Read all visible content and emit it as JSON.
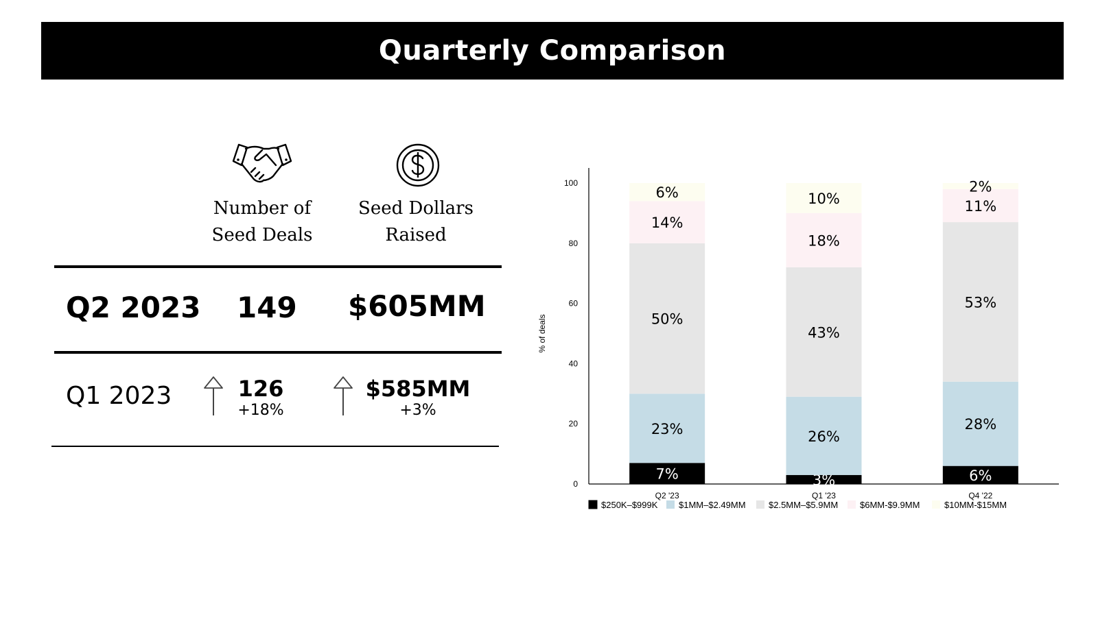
{
  "banner": {
    "title": "Quarterly Comparison"
  },
  "table": {
    "col_deals": {
      "line1": "Number of",
      "line2": "Seed Deals",
      "icon": "handshake-icon"
    },
    "col_dollars": {
      "line1": "Seed Dollars",
      "line2": "Raised",
      "icon": "dollar-coin-icon"
    },
    "current": {
      "label": "Q2 2023",
      "deals": "149",
      "dollars": "$605MM"
    },
    "previous": {
      "label": "Q1 2023",
      "deals": "126",
      "deals_change": "+18%",
      "dollars": "$585MM",
      "dollars_change": "+3%",
      "arrow_icon": "up-arrow-icon"
    }
  },
  "chart_data": {
    "type": "bar",
    "stacked": true,
    "categories": [
      "Q2 '23",
      "Q1 '23",
      "Q4 '22"
    ],
    "ylabel": "% of deals",
    "ylim": [
      0,
      100
    ],
    "yticks": [
      0,
      20,
      40,
      60,
      80,
      100
    ],
    "legend_position": "bottom",
    "series": [
      {
        "name": "$250K–$999K",
        "color": "#000000",
        "label_color": "#ffffff",
        "values": [
          7,
          3,
          6
        ],
        "labels": [
          "7%",
          "3%",
          "6%"
        ]
      },
      {
        "name": "$1MM–$2.49MM",
        "color": "#c5dce6",
        "label_color": "#000000",
        "values": [
          23,
          26,
          28
        ],
        "labels": [
          "23%",
          "26%",
          "28%"
        ]
      },
      {
        "name": "$2.5MM–$5.9MM",
        "color": "#e6e6e6",
        "label_color": "#000000",
        "values": [
          50,
          43,
          53
        ],
        "labels": [
          "50%",
          "43%",
          "53%"
        ]
      },
      {
        "name": "$6MM-$9.9MM",
        "color": "#fdf1f4",
        "label_color": "#000000",
        "values": [
          14,
          18,
          11
        ],
        "labels": [
          "14%",
          "18%",
          "11%"
        ]
      },
      {
        "name": "$10MM-$15MM",
        "color": "#fdfdf0",
        "label_color": "#000000",
        "values": [
          6,
          10,
          2
        ],
        "labels": [
          "6%",
          "10%",
          "2%"
        ]
      }
    ]
  }
}
